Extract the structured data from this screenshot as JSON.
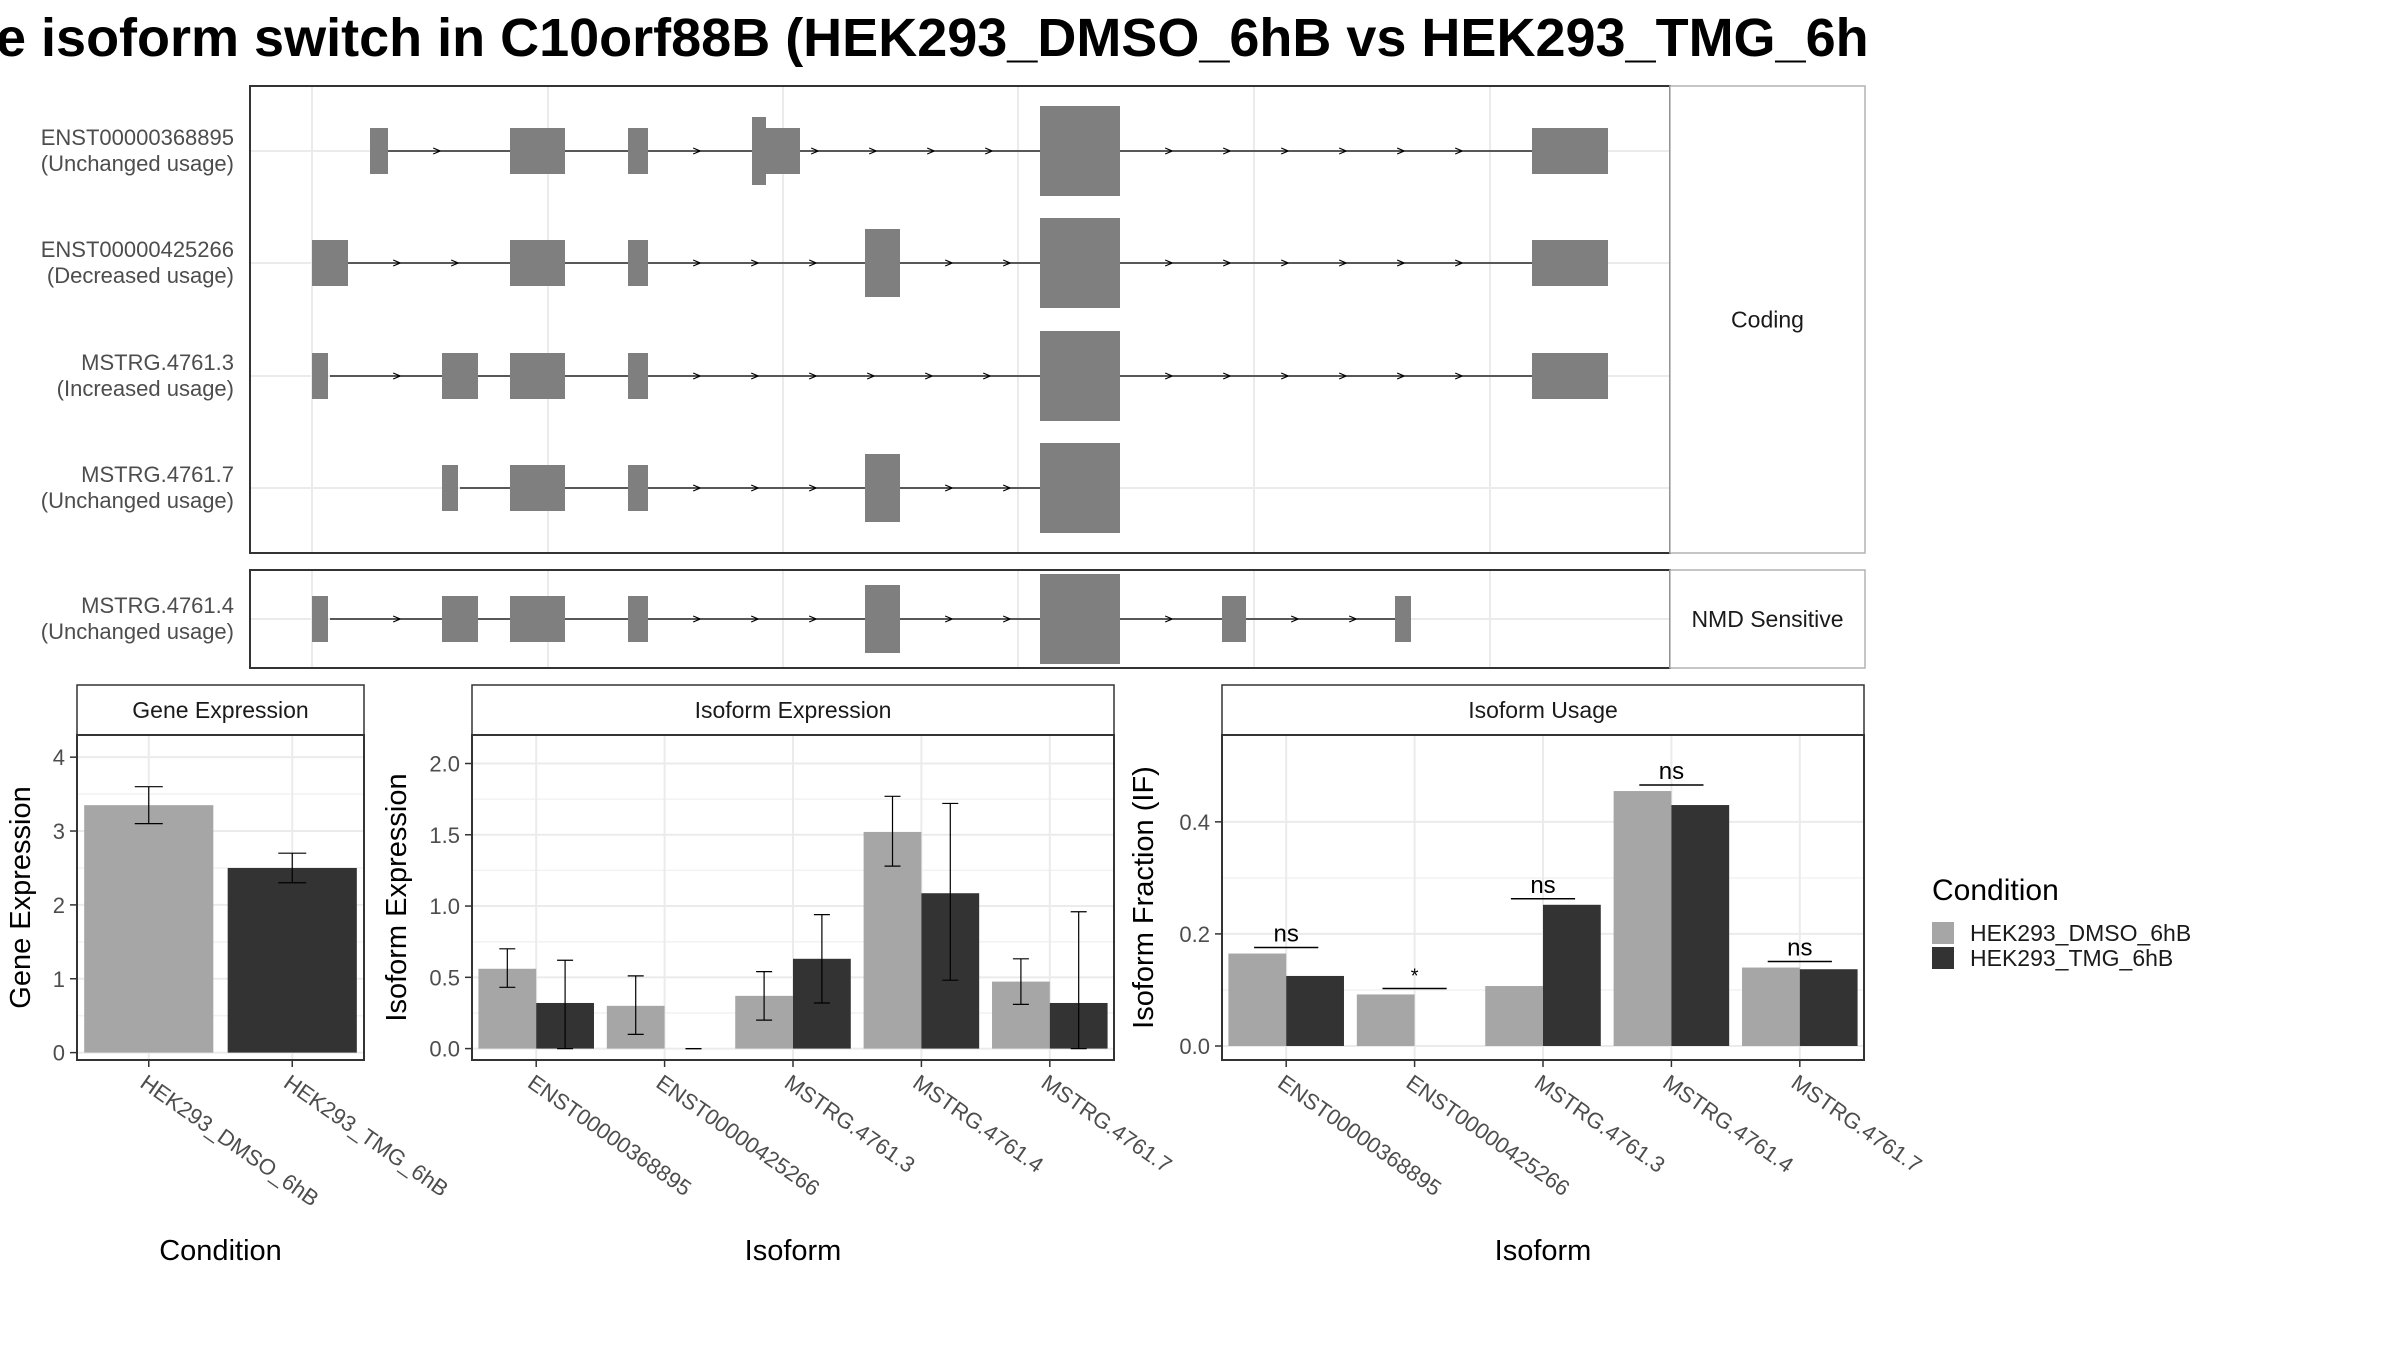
{
  "title": "e isoform switch in C10orf88B (HEK293_DMSO_6hB vs HEK293_TMG_6h",
  "colors": {
    "exon": "#7f7f7f",
    "dmso": "#a6a6a6",
    "tmg": "#333333",
    "grid": "#ebebeb",
    "panel_border": "#333333",
    "strip_border": "#b3b3b3"
  },
  "structure": {
    "facets": [
      {
        "label": "Coding",
        "transcripts": [
          {
            "id": "ENST00000368895",
            "usage": "(Unchanged usage)",
            "exons": [
              [
                1,
                "s"
              ],
              [
                3,
                "s"
              ],
              [
                4,
                "s"
              ],
              [
                5,
                "m",
                [
                  5,
                  "s"
                ]
              ],
              [
                8,
                "b",
                [
                  8,
                  "s"
                ]
              ],
              [
                10,
                "s"
              ]
            ]
          },
          {
            "id": "ENST00000425266",
            "usage": "(Decreased usage)",
            "exons": [
              [
                0,
                "s"
              ],
              [
                3,
                "s"
              ],
              [
                4,
                "s"
              ],
              [
                6,
                "m",
                [
                  6,
                  "s"
                ]
              ],
              [
                8,
                "b",
                [
                  8,
                  "s"
                ]
              ],
              [
                10,
                "s"
              ]
            ]
          },
          {
            "id": "MSTRG.4761.3",
            "usage": "(Increased usage)",
            "exons": [
              [
                0,
                "t"
              ],
              [
                2,
                "s"
              ],
              [
                3,
                "s"
              ],
              [
                4,
                "s"
              ],
              [
                8,
                "b",
                [
                  8,
                  "m"
                ]
              ],
              [
                10,
                "s"
              ]
            ]
          },
          {
            "id": "MSTRG.4761.7",
            "usage": "(Unchanged usage)",
            "exons": [
              [
                2,
                "t"
              ],
              [
                3,
                "s"
              ],
              [
                4,
                "s"
              ],
              [
                6,
                "m",
                [
                  6,
                  "s"
                ]
              ],
              [
                8,
                "b",
                [
                  8,
                  "s"
                ]
              ]
            ]
          }
        ]
      },
      {
        "label": "NMD Sensitive",
        "transcripts": [
          {
            "id": "MSTRG.4761.4",
            "usage": "(Unchanged usage)",
            "exons": [
              [
                0,
                "t"
              ],
              [
                2,
                "s"
              ],
              [
                3,
                "s"
              ],
              [
                4,
                "s"
              ],
              [
                6,
                "m",
                [
                  6,
                  "s"
                ]
              ],
              [
                8,
                "b",
                [
                  8,
                  "s"
                ]
              ],
              [
                9,
                "s"
              ],
              [
                11,
                "t"
              ]
            ]
          }
        ]
      }
    ]
  },
  "legend": {
    "title": "Condition",
    "entries": [
      "HEK293_DMSO_6hB",
      "HEK293_TMG_6hB"
    ]
  },
  "chart_data": [
    {
      "type": "bar",
      "title": "Gene Expression",
      "xlabel": "Condition",
      "ylabel": "Gene Expression",
      "ylim": [
        -0.1,
        4.3
      ],
      "yticks": [
        0,
        1,
        2,
        3,
        4
      ],
      "categories": [
        "HEK293_DMSO_6hB",
        "HEK293_TMG_6hB"
      ],
      "values": [
        3.35,
        2.5
      ],
      "errors": [
        [
          3.1,
          3.6
        ],
        [
          2.3,
          2.7
        ]
      ]
    },
    {
      "type": "bar",
      "title": "Isoform Expression",
      "xlabel": "Isoform",
      "ylabel": "Isoform Expression",
      "ylim": [
        -0.08,
        2.2
      ],
      "yticks": [
        0.0,
        0.5,
        1.0,
        1.5,
        2.0
      ],
      "categories": [
        "ENST00000368895",
        "ENST00000425266",
        "MSTRG.4761.3",
        "MSTRG.4761.4",
        "MSTRG.4761.7"
      ],
      "series": [
        {
          "name": "HEK293_DMSO_6hB",
          "values": [
            0.56,
            0.3,
            0.37,
            1.52,
            0.47
          ],
          "errors": [
            [
              0.43,
              0.7
            ],
            [
              0.1,
              0.51
            ],
            [
              0.2,
              0.54
            ],
            [
              1.28,
              1.77
            ],
            [
              0.31,
              0.63
            ]
          ]
        },
        {
          "name": "HEK293_TMG_6hB",
          "values": [
            0.32,
            0.0,
            0.63,
            1.09,
            0.32
          ],
          "errors": [
            [
              0.0,
              0.62
            ],
            [
              0.0,
              0.0
            ],
            [
              0.32,
              0.94
            ],
            [
              0.48,
              1.72
            ],
            [
              0.0,
              0.96
            ]
          ]
        }
      ]
    },
    {
      "type": "bar",
      "title": "Isoform Usage",
      "xlabel": "Isoform",
      "ylabel": "Isoform Fraction (IF)",
      "ylim": [
        -0.025,
        0.555
      ],
      "yticks": [
        0.0,
        0.2,
        0.4
      ],
      "categories": [
        "ENST00000368895",
        "ENST00000425266",
        "MSTRG.4761.3",
        "MSTRG.4761.4",
        "MSTRG.4761.7"
      ],
      "series": [
        {
          "name": "HEK293_DMSO_6hB",
          "values": [
            0.165,
            0.092,
            0.107,
            0.455,
            0.14
          ]
        },
        {
          "name": "HEK293_TMG_6hB",
          "values": [
            0.125,
            0.0,
            0.252,
            0.43,
            0.137
          ]
        }
      ],
      "significance": [
        "ns",
        "*",
        "ns",
        "ns",
        "ns"
      ]
    }
  ]
}
